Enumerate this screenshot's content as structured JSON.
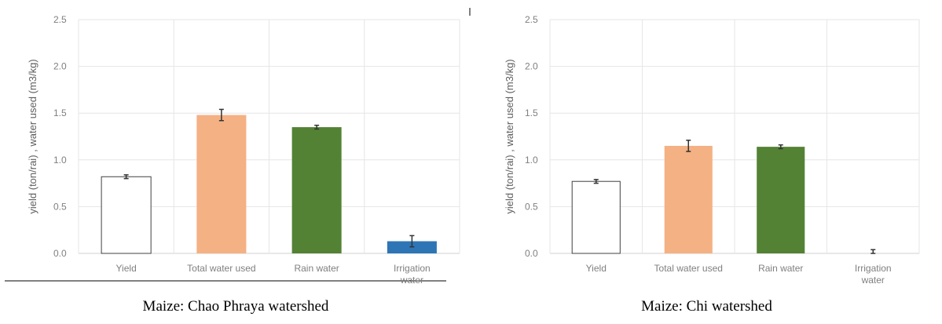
{
  "chart_data": [
    {
      "type": "bar",
      "caption": "Maize: Chao Phraya watershed",
      "ylabel": "yield (ton/rai) , water used (m3/kg)",
      "categories": [
        [
          "Yield"
        ],
        [
          "Total water used"
        ],
        [
          "Rain water"
        ],
        [
          "Irrigation",
          "water"
        ]
      ],
      "values": [
        0.82,
        1.48,
        1.35,
        0.13
      ],
      "errors": [
        0.02,
        0.06,
        0.02,
        0.06
      ],
      "colors": [
        "#ffffff",
        "#f4b183",
        "#548235",
        "#2e75b6"
      ],
      "ylim": [
        0,
        2.5
      ],
      "yticks": [
        "0.0",
        "0.5",
        "1.0",
        "1.5",
        "2.0",
        "2.5"
      ],
      "grid": true
    },
    {
      "type": "bar",
      "caption": "Maize: Chi watershed",
      "ylabel": "yield (ton/rai) , water used (m3/kg)",
      "categories": [
        [
          "Yield"
        ],
        [
          "Total water used"
        ],
        [
          "Rain water"
        ],
        [
          "Irrigation",
          "water"
        ]
      ],
      "values": [
        0.77,
        1.15,
        1.14,
        0.0
      ],
      "errors": [
        0.02,
        0.06,
        0.02,
        0.04
      ],
      "colors": [
        "#ffffff",
        "#f4b183",
        "#548235",
        "#2e75b6"
      ],
      "ylim": [
        0,
        2.5
      ],
      "yticks": [
        "0.0",
        "0.5",
        "1.0",
        "1.5",
        "2.0",
        "2.5"
      ],
      "grid": true
    }
  ]
}
